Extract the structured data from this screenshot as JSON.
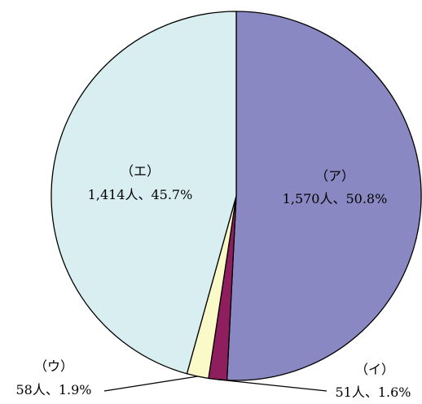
{
  "chart_data": {
    "type": "pie",
    "title": "",
    "start_angle_deg": 0,
    "direction": "clockwise",
    "slices": [
      {
        "key": "ア",
        "label": "（ア）",
        "value_label": "1,570人、50.8%",
        "count": 1570,
        "percent": 50.8,
        "color": "#8a88c2"
      },
      {
        "key": "イ",
        "label": "（イ）",
        "value_label": "51人、1.6%",
        "count": 51,
        "percent": 1.6,
        "color": "#8f1e5e"
      },
      {
        "key": "ウ",
        "label": "（ウ）",
        "value_label": "58人、1.9%",
        "count": 58,
        "percent": 1.9,
        "color": "#fafac8"
      },
      {
        "key": "エ",
        "label": "（エ）",
        "value_label": "1,414人、45.7%",
        "count": 1414,
        "percent": 45.7,
        "color": "#d9eef0"
      }
    ],
    "edge_color": "#000000"
  }
}
